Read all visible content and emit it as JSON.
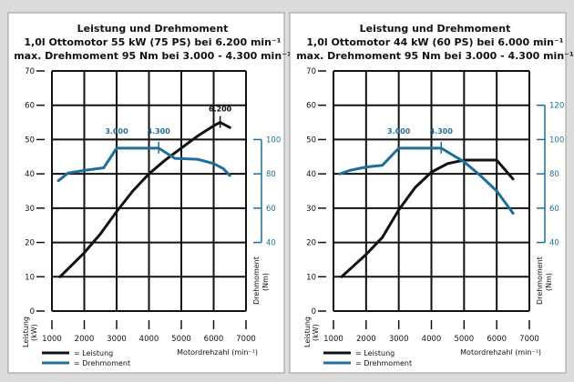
{
  "chart_data": [
    {
      "type": "line",
      "title": "Leistung und Drehmoment",
      "subtitle_1": "1,0l Ottomotor 55 kW (75 PS) bei 6.200 min⁻¹",
      "subtitle_2": "max. Drehmoment 95 Nm bei 3.000 - 4.300 min⁻¹",
      "xlabel": "Motordrehzahl (min⁻¹)",
      "ylabel_left": "Leistung (kW)",
      "ylabel_right": "Drehmoment (Nm)",
      "xlim": [
        1000,
        7000
      ],
      "ylim_left": [
        0,
        70
      ],
      "x_ticks": [
        "1000",
        "2000",
        "3000",
        "4000",
        "5000",
        "6000",
        "7000"
      ],
      "y_ticks_left": [
        "0",
        "10",
        "20",
        "30",
        "40",
        "50",
        "60",
        "70"
      ],
      "y_ticks_right": [
        "40",
        "60",
        "80",
        "100"
      ],
      "right_axis_scale": "Nm = 2 × kW",
      "grid": true,
      "annotations": [
        {
          "text": "3.000",
          "series": "Drehmoment",
          "x": 3000
        },
        {
          "text": "4.300",
          "series": "Drehmoment",
          "x": 4300
        },
        {
          "text": "6.200",
          "series": "Leistung",
          "x": 6200
        }
      ],
      "series": [
        {
          "name": "Leistung",
          "axis": "left",
          "color": "#111111",
          "x": [
            1250,
            2000,
            2500,
            3000,
            3500,
            4000,
            4500,
            5000,
            5500,
            6000,
            6200,
            6500
          ],
          "y": [
            10,
            17,
            22.5,
            29,
            35,
            40,
            44,
            47.5,
            51,
            54,
            55,
            53.5
          ]
        },
        {
          "name": "Drehmoment",
          "axis": "right",
          "color": "#1f6e99",
          "x": [
            1200,
            1500,
            2000,
            2600,
            3000,
            4300,
            4800,
            5500,
            6000,
            6300,
            6500
          ],
          "y": [
            76,
            80.5,
            82,
            83.5,
            95,
            95,
            89,
            88.5,
            86,
            83,
            79
          ]
        }
      ]
    },
    {
      "type": "line",
      "title": "Leistung und Drehmoment",
      "subtitle_1": "1,0l Ottomotor 44 kW (60 PS) bei 6.000 min⁻¹",
      "subtitle_2": "max. Drehmoment 95 Nm bei 3.000 - 4.300 min⁻¹",
      "xlabel": "Motordrehzahl (min⁻¹)",
      "ylabel_left": "Leistung (kW)",
      "ylabel_right": "Drehmoment (Nm)",
      "xlim": [
        1000,
        7000
      ],
      "ylim_left": [
        0,
        70
      ],
      "x_ticks": [
        "1000",
        "2000",
        "3000",
        "4000",
        "5000",
        "6000",
        "7000"
      ],
      "y_ticks_left": [
        "0",
        "10",
        "20",
        "30",
        "40",
        "50",
        "60",
        "70"
      ],
      "y_ticks_right": [
        "40",
        "60",
        "80",
        "100",
        "120"
      ],
      "right_axis_scale": "Nm = 2 × kW",
      "grid": true,
      "annotations": [
        {
          "text": "3.000",
          "series": "Drehmoment",
          "x": 3000
        },
        {
          "text": "4.300",
          "series": "Drehmoment",
          "x": 4300
        }
      ],
      "series": [
        {
          "name": "Leistung",
          "axis": "left",
          "color": "#111111",
          "x": [
            1250,
            2000,
            2500,
            3000,
            3500,
            4000,
            4500,
            5000,
            6000,
            6500
          ],
          "y": [
            10,
            16.5,
            21.5,
            29.5,
            36,
            40.5,
            43,
            44,
            44,
            38.5
          ]
        },
        {
          "name": "Drehmoment",
          "axis": "right",
          "color": "#1f6e99",
          "x": [
            1200,
            1500,
            2000,
            2500,
            3000,
            4300,
            5000,
            5500,
            6000,
            6500
          ],
          "y": [
            80,
            82,
            84,
            85,
            95,
            95,
            87,
            79,
            70,
            57
          ]
        }
      ]
    }
  ],
  "legend": {
    "leistung": "= Leistung",
    "drehmoment": "= Drehmoment"
  }
}
